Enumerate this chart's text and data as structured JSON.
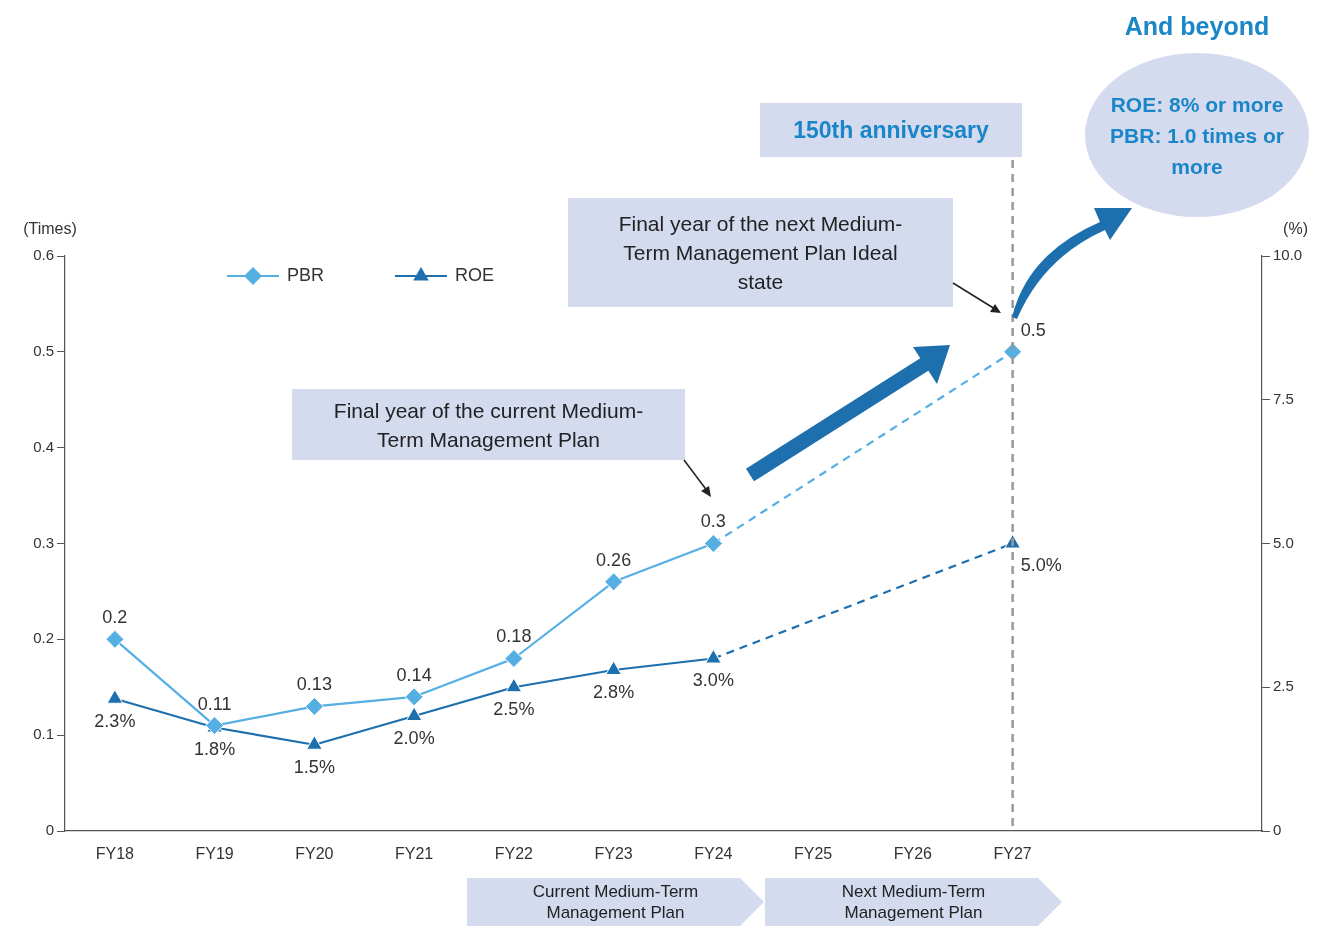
{
  "chart_data": {
    "type": "line",
    "categories": [
      "FY18",
      "FY19",
      "FY20",
      "FY21",
      "FY22",
      "FY23",
      "FY24",
      "FY25",
      "FY26",
      "FY27",
      null,
      null
    ],
    "ylabel": "(Times)",
    "y2label": "(%)",
    "ylim": [
      0,
      0.6
    ],
    "yticks": [
      0,
      0.1,
      0.2,
      0.3,
      0.4,
      0.5,
      0.6
    ],
    "y2lim": [
      0,
      10
    ],
    "y2ticks": [
      0,
      {
        "value": 2.5,
        "label": "2.5"
      },
      {
        "value": 5,
        "label": "5.0"
      },
      {
        "value": 7.5,
        "label": "7.5"
      },
      {
        "value": 10,
        "label": "10.0"
      }
    ],
    "grid": false,
    "legend": "top left",
    "series": [
      {
        "name": "PBR",
        "color": "#55afe3",
        "marker": "diamond",
        "line_style": "solid",
        "values": [
          0.2,
          0.11,
          0.13,
          0.14,
          0.18,
          0.26,
          0.3,
          null,
          null,
          null,
          null,
          null
        ],
        "value_labels": [
          "0.2",
          "0.11",
          "0.13",
          "0.14",
          "0.18",
          "0.26",
          "0.3",
          null,
          null,
          null,
          null,
          null
        ]
      },
      {
        "color": "#55afe3",
        "marker": "diamond",
        "line_style": "dashed",
        "values": [
          null,
          null,
          null,
          null,
          null,
          null,
          0.3,
          null,
          null,
          0.5,
          null,
          null
        ],
        "value_labels": [
          null,
          null,
          null,
          null,
          null,
          null,
          null,
          null,
          null,
          "0.5",
          null,
          null
        ]
      },
      {
        "name": "ROE",
        "axis": "y2",
        "color": "#1d6fae",
        "marker": "triangle",
        "line_style": "solid",
        "values": [
          2.3,
          1.8,
          1.5,
          2.0,
          2.5,
          2.8,
          3.0,
          null,
          null,
          null,
          null,
          null
        ],
        "value_labels": [
          "2.3%",
          "1.8%",
          "1.5%",
          "2.0%",
          "2.5%",
          "2.8%",
          "3.0%",
          null,
          null,
          null,
          null,
          null
        ]
      },
      {
        "axis": "y2",
        "color": "#1d6fae",
        "marker": "triangle",
        "line_style": "dashed",
        "values": [
          null,
          null,
          null,
          null,
          null,
          null,
          3.0,
          null,
          null,
          5.0,
          null,
          null
        ],
        "value_labels": [
          null,
          null,
          null,
          null,
          null,
          null,
          null,
          null,
          null,
          "5.0%",
          null,
          null
        ]
      }
    ],
    "ref_lines": [
      {
        "axis": "x",
        "value": "FY27",
        "label": "150th anniversary",
        "color": "#999999",
        "line_style": "dashed"
      }
    ],
    "annotations": [
      "Final year of the current Medium-Term Management Plan",
      "Final year of the next Medium-Term Management Plan Ideal state",
      "And beyond",
      "ROE: 8% or more PBR: 1.0 times or more",
      "Current Medium-Term Management Plan",
      "Next Medium-Term Management Plan"
    ]
  }
}
